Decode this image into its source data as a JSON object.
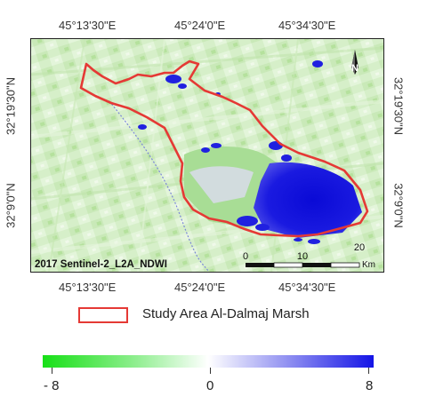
{
  "map": {
    "year_product_label": "2017 Sentinel-2_L2A_NDWI",
    "top_lon_labels": [
      "45°13'30\"E",
      "45°24'0\"E",
      "45°34'30\"E"
    ],
    "bottom_lon_labels": [
      "45°13'30\"E",
      "45°24'0\"E",
      "45°34'30\"E"
    ],
    "left_lat_labels": [
      "32°19'30\"N",
      "32°9'0\"N"
    ],
    "right_lat_labels": [
      "32°19'30\"N",
      "32°9'0\"N"
    ],
    "north_arrow_letter": "N",
    "scale_bar": {
      "labels": [
        "0",
        "10",
        "20"
      ],
      "unit": "Km"
    }
  },
  "legend": {
    "study_area_label": "Study Area Al-Dalmaj Marsh",
    "boundary_color": "#e53935"
  },
  "colorbar": {
    "labels": [
      "- 8",
      "0",
      "8"
    ],
    "colors": {
      "low": "#17e017",
      "mid": "#ffffff",
      "high": "#1414e6"
    }
  }
}
